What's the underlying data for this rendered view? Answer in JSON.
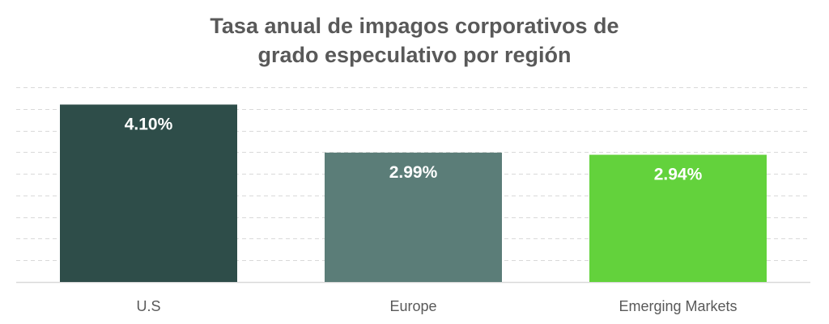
{
  "chart_data": {
    "type": "bar",
    "title_lines": [
      "Tasa anual de impagos corporativos de",
      "grado especulativo por región"
    ],
    "categories": [
      "U.S",
      "Europe",
      "Emerging Markets"
    ],
    "values": [
      4.1,
      2.99,
      2.94
    ],
    "value_labels": [
      "4.10%",
      "2.99%",
      "2.94%"
    ],
    "colors": [
      "#2e4d49",
      "#5b7d78",
      "#63d23c"
    ],
    "label_color": "#ffffff",
    "axis_label_color": "#595959",
    "gridline_color": "#d9d9d9",
    "baseline_color": "#d9d9d9",
    "ylim": [
      0,
      4.5
    ],
    "gridlines": true,
    "xlabel": "",
    "ylabel": ""
  }
}
